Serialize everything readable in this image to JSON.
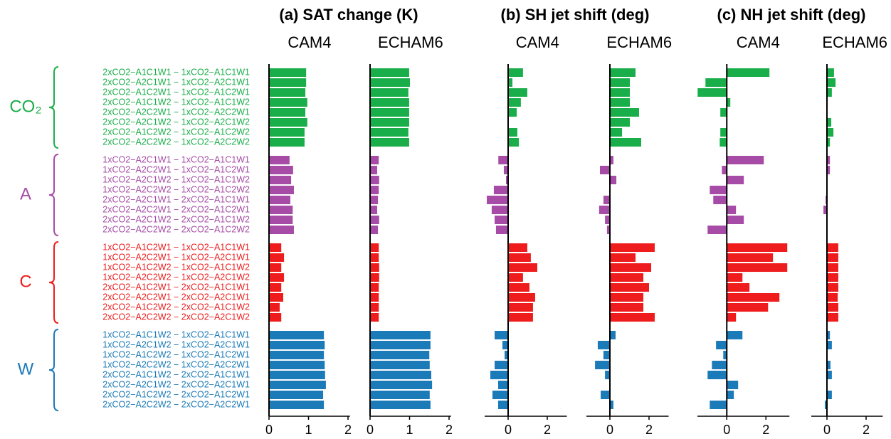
{
  "chart_data": {
    "type": "bar",
    "orientation": "horizontal",
    "groups": [
      {
        "label": "CO₂",
        "color": "#1aae4a",
        "categories": [
          "2xCO2−A1C1W1 − 1xCO2−A1C1W1",
          "2xCO2−A2C1W1 − 1xCO2−A2C1W1",
          "2xCO2−A1C2W1 − 1xCO2−A1C2W1",
          "2xCO2−A1C1W2 − 1xCO2−A1C1W2",
          "2xCO2−A2C2W1 − 1xCO2−A2C2W1",
          "2xCO2−A2C1W2 − 1xCO2−A2C1W2",
          "2xCO2−A1C2W2 − 1xCO2−A1C2W2",
          "2xCO2−A2C2W2 − 1xCO2−A2C2W2"
        ]
      },
      {
        "label": "A",
        "color": "#a64ca6",
        "categories": [
          "1xCO2−A2C1W1 − 1xCO2−A1C1W1",
          "1xCO2−A2C2W1 − 1xCO2−A1C2W1",
          "1xCO2−A2C1W2 − 1xCO2−A1C1W2",
          "1xCO2−A2C2W2 − 1xCO2−A1C2W2",
          "2xCO2−A2C1W1 − 2xCO2−A1C1W1",
          "2xCO2−A2C2W1 − 2xCO2−A1C2W1",
          "2xCO2−A2C1W2 − 2xCO2−A1C1W2",
          "2xCO2−A2C2W2 − 2xCO2−A1C2W2"
        ]
      },
      {
        "label": "C",
        "color": "#ee1c1c",
        "categories": [
          "1xCO2−A1C2W1 − 1xCO2−A1C1W1",
          "1xCO2−A2C2W1 − 1xCO2−A2C1W1",
          "1xCO2−A1C2W2 − 1xCO2−A1C1W2",
          "1xCO2−A2C2W2 − 1xCO2−A2C1W2",
          "2xCO2−A1C2W1 − 2xCO2−A1C1W1",
          "2xCO2−A2C2W1 − 2xCO2−A2C1W1",
          "2xCO2−A1C2W2 − 2xCO2−A1C1W2",
          "2xCO2−A2C2W2 − 2xCO2−A2C1W2"
        ]
      },
      {
        "label": "W",
        "color": "#1b7ab8",
        "categories": [
          "1xCO2−A1C1W2 − 1xCO2−A1C1W1",
          "1xCO2−A2C1W2 − 1xCO2−A2C1W1",
          "1xCO2−A1C2W2 − 1xCO2−A1C2W1",
          "1xCO2−A2C2W2 − 1xCO2−A2C2W1",
          "2xCO2−A1C1W2 − 2xCO2−A1C1W1",
          "2xCO2−A2C1W2 − 2xCO2−A2C1W1",
          "2xCO2−A1C2W2 − 2xCO2−A1C2W1",
          "2xCO2−A2C2W2 − 2xCO2−A2C2W1"
        ]
      }
    ],
    "panels": [
      {
        "title": "(a) SAT change (K)",
        "models": [
          {
            "name": "CAM4",
            "xlim": [
              0,
              2.05
            ],
            "xticks": [
              0,
              1,
              2
            ],
            "values": [
              [
                0.94,
                0.94,
                0.92,
                0.97,
                0.92,
                0.97,
                0.9,
                0.9
              ],
              [
                0.52,
                0.61,
                0.56,
                0.63,
                0.54,
                0.6,
                0.6,
                0.63
              ],
              [
                0.31,
                0.38,
                0.31,
                0.38,
                0.31,
                0.36,
                0.27,
                0.31
              ],
              [
                1.39,
                1.41,
                1.39,
                1.41,
                1.42,
                1.44,
                1.37,
                1.39
              ]
            ]
          },
          {
            "name": "ECHAM6",
            "xlim": [
              0,
              2.05
            ],
            "xticks": [
              0,
              1,
              2
            ],
            "values": [
              [
                0.99,
                1.01,
                0.97,
                0.99,
                0.99,
                0.99,
                0.97,
                0.99
              ],
              [
                0.22,
                0.18,
                0.23,
                0.22,
                0.2,
                0.18,
                0.23,
                0.2
              ],
              [
                0.22,
                0.22,
                0.23,
                0.23,
                0.22,
                0.22,
                0.22,
                0.22
              ],
              [
                1.53,
                1.53,
                1.5,
                1.51,
                1.55,
                1.57,
                1.51,
                1.53
              ]
            ]
          }
        ]
      },
      {
        "title": "(b) SH jet shift (deg)",
        "models": [
          {
            "name": "CAM4",
            "xlim": [
              -1.2,
              3.0
            ],
            "xticks": [
              0,
              2
            ],
            "values": [
              [
                0.76,
                0.22,
                0.98,
                0.65,
                0.44,
                0.02,
                0.47,
                0.55
              ],
              [
                -0.5,
                -0.22,
                -0.11,
                -0.73,
                -1.09,
                -0.84,
                -0.69,
                -0.62
              ],
              [
                0.98,
                1.16,
                1.49,
                0.76,
                1.09,
                1.38,
                1.27,
                1.27
              ],
              [
                -0.69,
                -0.29,
                -0.18,
                -0.69,
                -0.91,
                -0.51,
                -0.8,
                -0.51
              ]
            ]
          },
          {
            "name": "ECHAM6",
            "xlim": [
              -1.2,
              3.0
            ],
            "xticks": [
              0,
              2
            ],
            "values": [
              [
                1.31,
                1.02,
                1.02,
                1.02,
                1.49,
                1.02,
                0.62,
                1.6
              ],
              [
                0.18,
                -0.51,
                0.33,
                0,
                -0.33,
                -0.55,
                -0.25,
                -0.15
              ],
              [
                2.29,
                1.31,
                2.11,
                1.71,
                2.0,
                1.71,
                1.71,
                2.29
              ],
              [
                0.29,
                -0.62,
                -0.33,
                -0.76,
                -0.25,
                0,
                -0.47,
                0.18
              ]
            ]
          }
        ]
      },
      {
        "title": "(c) NH jet shift (deg)",
        "models": [
          {
            "name": "CAM4",
            "xlim": [
              -1.5,
              3.2
            ],
            "xticks": [
              0,
              2
            ],
            "values": [
              [
                2.18,
                -1.09,
                -1.49,
                0.18,
                -0.33,
                0,
                -0.33,
                -0.36
              ],
              [
                1.89,
                -0.25,
                0.87,
                -0.87,
                -0.69,
                0.47,
                0.87,
                -0.98
              ],
              [
                3.09,
                2.36,
                3.09,
                0.8,
                1.16,
                2.69,
                2.11,
                0.47
              ],
              [
                0.8,
                -0.55,
                -0.18,
                -0.76,
                -0.98,
                0.58,
                0.36,
                -0.87
              ]
            ]
          },
          {
            "name": "ECHAM6",
            "xlim": [
              -0.8,
              2.85
            ],
            "xticks": [
              0,
              2
            ],
            "values": [
              [
                0.36,
                0.44,
                0.25,
                0.04,
                0,
                0.22,
                0.33,
                0.15
              ],
              [
                0.15,
                0.15,
                0,
                0,
                -0.07,
                -0.18,
                0,
                0
              ],
              [
                0.58,
                0.58,
                0.58,
                0.58,
                0.58,
                0.55,
                0.58,
                0.58
              ],
              [
                0.15,
                0.25,
                0,
                0.18,
                0.25,
                0,
                0.25,
                -0.11
              ]
            ]
          }
        ]
      }
    ]
  }
}
